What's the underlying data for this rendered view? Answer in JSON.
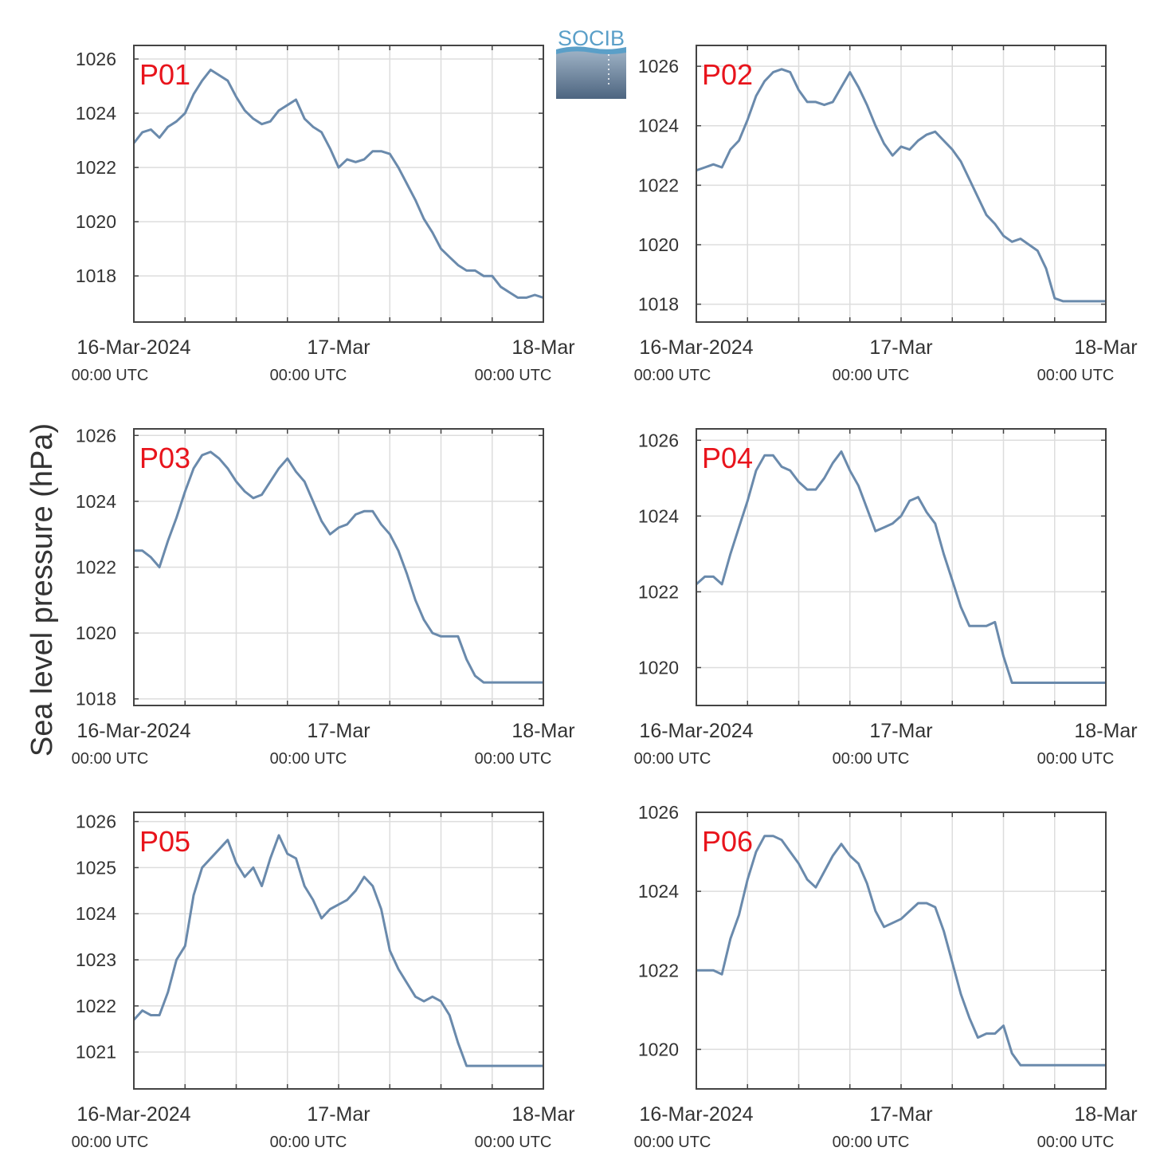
{
  "ylabel": "Sea level pressure (hPa)",
  "logo": {
    "text": "SOCIB"
  },
  "colors": {
    "line": "#6a8aac",
    "label": "#e8141c",
    "axis": "#444444",
    "grid": "#dddddd",
    "logo": "#5a9fc8"
  },
  "x_ticks": [
    {
      "main": "16-Mar-2024",
      "sub": "00:00 UTC"
    },
    {
      "main": "17-Mar",
      "sub": "00:00 UTC"
    },
    {
      "main": "18-Mar",
      "sub": "00:00 UTC"
    }
  ],
  "chart_data": [
    {
      "type": "line",
      "label": "P01",
      "xlim": [
        "2024-03-16 00:00",
        "2024-03-18 00:00"
      ],
      "ylim": [
        1016.3,
        1026.5
      ],
      "yticks": [
        1018,
        1020,
        1022,
        1024,
        1026
      ],
      "x_hours": [
        0,
        1,
        2,
        3,
        4,
        5,
        6,
        7,
        8,
        9,
        10,
        11,
        12,
        13,
        14,
        15,
        16,
        17,
        18,
        19,
        20,
        21,
        22,
        23,
        24,
        25,
        26,
        27,
        28,
        29,
        30,
        31,
        32,
        33,
        34,
        35,
        36,
        37,
        38,
        39,
        40,
        41,
        42,
        43,
        44,
        45,
        46,
        47,
        48
      ],
      "y": [
        1022.9,
        1023.3,
        1023.4,
        1023.1,
        1023.5,
        1023.7,
        1024.0,
        1024.7,
        1025.2,
        1025.6,
        1025.4,
        1025.2,
        1024.6,
        1024.1,
        1023.8,
        1023.6,
        1023.7,
        1024.1,
        1024.3,
        1024.5,
        1023.8,
        1023.5,
        1023.3,
        1022.7,
        1022.0,
        1022.3,
        1022.2,
        1022.3,
        1022.6,
        1022.6,
        1022.5,
        1022.0,
        1021.4,
        1020.8,
        1020.1,
        1019.6,
        1019.0,
        1018.7,
        1018.4,
        1018.2,
        1018.2,
        1018.0,
        1018.0,
        1017.6,
        1017.4,
        1017.2,
        1017.2,
        1017.3,
        1017.2
      ]
    },
    {
      "type": "line",
      "label": "P02",
      "xlim": [
        "2024-03-16 00:00",
        "2024-03-18 00:00"
      ],
      "ylim": [
        1017.4,
        1026.7
      ],
      "yticks": [
        1018,
        1020,
        1022,
        1024,
        1026
      ],
      "x_hours": [
        0,
        1,
        2,
        3,
        4,
        5,
        6,
        7,
        8,
        9,
        10,
        11,
        12,
        13,
        14,
        15,
        16,
        17,
        18,
        19,
        20,
        21,
        22,
        23,
        24,
        25,
        26,
        27,
        28,
        29,
        30,
        31,
        32,
        33,
        34,
        35,
        36,
        37,
        38,
        39,
        40,
        41,
        42,
        43,
        44,
        45,
        46,
        47,
        48
      ],
      "y": [
        1022.5,
        1022.6,
        1022.7,
        1022.6,
        1023.2,
        1023.5,
        1024.2,
        1025.0,
        1025.5,
        1025.8,
        1025.9,
        1025.8,
        1025.2,
        1024.8,
        1024.8,
        1024.7,
        1024.8,
        1025.3,
        1025.8,
        1025.3,
        1024.7,
        1024.0,
        1023.4,
        1023.0,
        1023.3,
        1023.2,
        1023.5,
        1023.7,
        1023.8,
        1023.5,
        1023.2,
        1022.8,
        1022.2,
        1021.6,
        1021.0,
        1020.7,
        1020.3,
        1020.1,
        1020.2,
        1020.0,
        1019.8,
        1019.2,
        1018.2,
        1018.1,
        1018.1,
        1018.1,
        1018.1,
        1018.1,
        1018.1
      ]
    },
    {
      "type": "line",
      "label": "P03",
      "xlim": [
        "2024-03-16 00:00",
        "2024-03-18 00:00"
      ],
      "ylim": [
        1017.8,
        1026.2
      ],
      "yticks": [
        1018,
        1020,
        1022,
        1024,
        1026
      ],
      "x_hours": [
        0,
        1,
        2,
        3,
        4,
        5,
        6,
        7,
        8,
        9,
        10,
        11,
        12,
        13,
        14,
        15,
        16,
        17,
        18,
        19,
        20,
        21,
        22,
        23,
        24,
        25,
        26,
        27,
        28,
        29,
        30,
        31,
        32,
        33,
        34,
        35,
        36,
        37,
        38,
        39,
        40,
        41,
        42,
        43,
        44,
        45,
        46,
        47,
        48
      ],
      "y": [
        1022.5,
        1022.5,
        1022.3,
        1022.0,
        1022.8,
        1023.5,
        1024.3,
        1025.0,
        1025.4,
        1025.5,
        1025.3,
        1025.0,
        1024.6,
        1024.3,
        1024.1,
        1024.2,
        1024.6,
        1025.0,
        1025.3,
        1024.9,
        1024.6,
        1024.0,
        1023.4,
        1023.0,
        1023.2,
        1023.3,
        1023.6,
        1023.7,
        1023.7,
        1023.3,
        1023.0,
        1022.5,
        1021.8,
        1021.0,
        1020.4,
        1020.0,
        1019.9,
        1019.9,
        1019.9,
        1019.2,
        1018.7,
        1018.5,
        1018.5,
        1018.5,
        1018.5,
        1018.5,
        1018.5,
        1018.5,
        1018.5
      ]
    },
    {
      "type": "line",
      "label": "P04",
      "xlim": [
        "2024-03-16 00:00",
        "2024-03-18 00:00"
      ],
      "ylim": [
        1019.0,
        1026.3
      ],
      "yticks": [
        1020,
        1022,
        1024,
        1026
      ],
      "x_hours": [
        0,
        1,
        2,
        3,
        4,
        5,
        6,
        7,
        8,
        9,
        10,
        11,
        12,
        13,
        14,
        15,
        16,
        17,
        18,
        19,
        20,
        21,
        22,
        23,
        24,
        25,
        26,
        27,
        28,
        29,
        30,
        31,
        32,
        33,
        34,
        35,
        36,
        37,
        38,
        39,
        40,
        41,
        42,
        43,
        44,
        45,
        46,
        47,
        48
      ],
      "y": [
        1022.2,
        1022.4,
        1022.4,
        1022.2,
        1023.0,
        1023.7,
        1024.4,
        1025.2,
        1025.6,
        1025.6,
        1025.3,
        1025.2,
        1024.9,
        1024.7,
        1024.7,
        1025.0,
        1025.4,
        1025.7,
        1025.2,
        1024.8,
        1024.2,
        1023.6,
        1023.7,
        1023.8,
        1024.0,
        1024.4,
        1024.5,
        1024.1,
        1023.8,
        1023.0,
        1022.3,
        1021.6,
        1021.1,
        1021.1,
        1021.1,
        1021.2,
        1020.3,
        1019.6,
        1019.6,
        1019.6,
        1019.6,
        1019.6,
        1019.6,
        1019.6,
        1019.6,
        1019.6,
        1019.6,
        1019.6,
        1019.6
      ]
    },
    {
      "type": "line",
      "label": "P05",
      "xlim": [
        "2024-03-16 00:00",
        "2024-03-18 00:00"
      ],
      "ylim": [
        1020.2,
        1026.2
      ],
      "yticks": [
        1021,
        1022,
        1023,
        1024,
        1025,
        1026
      ],
      "x_hours": [
        0,
        1,
        2,
        3,
        4,
        5,
        6,
        7,
        8,
        9,
        10,
        11,
        12,
        13,
        14,
        15,
        16,
        17,
        18,
        19,
        20,
        21,
        22,
        23,
        24,
        25,
        26,
        27,
        28,
        29,
        30,
        31,
        32,
        33,
        34,
        35,
        36,
        37,
        38,
        39,
        40,
        41,
        42,
        43,
        44,
        45,
        46,
        47,
        48
      ],
      "y": [
        1021.7,
        1021.9,
        1021.8,
        1021.8,
        1022.3,
        1023.0,
        1023.3,
        1024.4,
        1025.0,
        1025.2,
        1025.4,
        1025.6,
        1025.1,
        1024.8,
        1025.0,
        1024.6,
        1025.2,
        1025.7,
        1025.3,
        1025.2,
        1024.6,
        1024.3,
        1023.9,
        1024.1,
        1024.2,
        1024.3,
        1024.5,
        1024.8,
        1024.6,
        1024.1,
        1023.2,
        1022.8,
        1022.5,
        1022.2,
        1022.1,
        1022.2,
        1022.1,
        1021.8,
        1021.2,
        1020.7,
        1020.7,
        1020.7,
        1020.7,
        1020.7,
        1020.7,
        1020.7,
        1020.7,
        1020.7,
        1020.7
      ]
    },
    {
      "type": "line",
      "label": "P06",
      "xlim": [
        "2024-03-16 00:00",
        "2024-03-18 00:00"
      ],
      "ylim": [
        1019.0,
        1026.0
      ],
      "yticks": [
        1020,
        1022,
        1024,
        1026
      ],
      "x_hours": [
        0,
        1,
        2,
        3,
        4,
        5,
        6,
        7,
        8,
        9,
        10,
        11,
        12,
        13,
        14,
        15,
        16,
        17,
        18,
        19,
        20,
        21,
        22,
        23,
        24,
        25,
        26,
        27,
        28,
        29,
        30,
        31,
        32,
        33,
        34,
        35,
        36,
        37,
        38,
        39,
        40,
        41,
        42,
        43,
        44,
        45,
        46,
        47,
        48
      ],
      "y": [
        1022.0,
        1022.0,
        1022.0,
        1021.9,
        1022.8,
        1023.4,
        1024.3,
        1025.0,
        1025.4,
        1025.4,
        1025.3,
        1025.0,
        1024.7,
        1024.3,
        1024.1,
        1024.5,
        1024.9,
        1025.2,
        1024.9,
        1024.7,
        1024.2,
        1023.5,
        1023.1,
        1023.2,
        1023.3,
        1023.5,
        1023.7,
        1023.7,
        1023.6,
        1023.0,
        1022.2,
        1021.4,
        1020.8,
        1020.3,
        1020.4,
        1020.4,
        1020.6,
        1019.9,
        1019.6,
        1019.6,
        1019.6,
        1019.6,
        1019.6,
        1019.6,
        1019.6,
        1019.6,
        1019.6,
        1019.6,
        1019.6
      ]
    }
  ]
}
